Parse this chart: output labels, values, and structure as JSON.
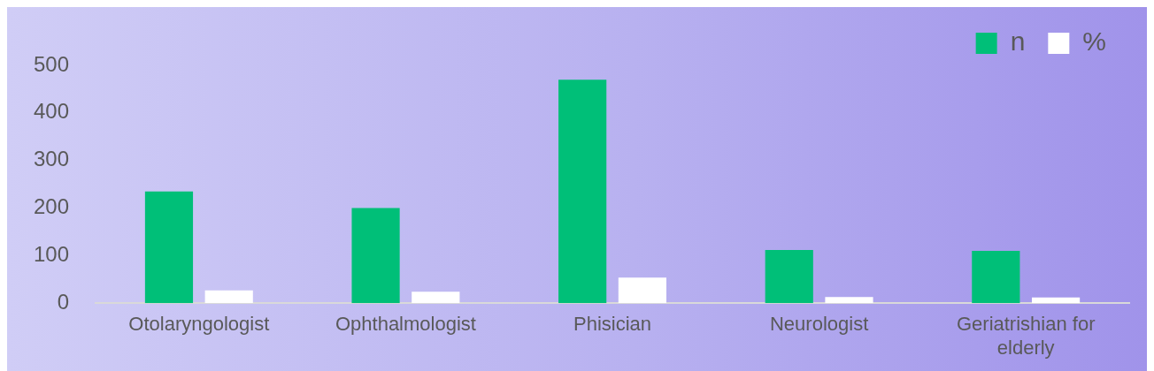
{
  "chart_data": {
    "type": "bar",
    "categories": [
      "Otolaryngologist",
      "Ophthalmologist",
      "Phisician",
      "Neurologist",
      "Geriatrishian for elderly"
    ],
    "series": [
      {
        "name": "n",
        "color": "#00bf78",
        "values": [
          235,
          200,
          470,
          112,
          110
        ]
      },
      {
        "name": "%",
        "color": "#ffffff",
        "values": [
          27,
          24,
          54,
          13,
          12
        ]
      }
    ],
    "ylim": [
      0,
      500
    ],
    "yticks": [
      0,
      100,
      200,
      300,
      400,
      500
    ],
    "grid": false,
    "legend": "top right"
  }
}
